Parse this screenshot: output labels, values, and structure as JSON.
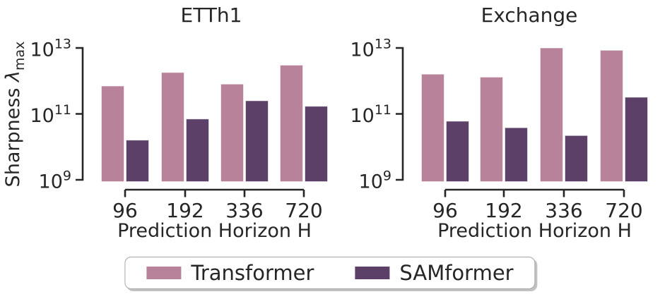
{
  "figure": {
    "background": "#ffffff"
  },
  "colors": {
    "transformer": "#b8839a",
    "samformer": "#5c4067",
    "bar_edge": "rgba(255,255,255,0.55)",
    "text": "#262626",
    "axis": "#262626",
    "legend_border": "#a6a6a6"
  },
  "legend": {
    "items": [
      {
        "label": "Transformer",
        "color_key": "transformer"
      },
      {
        "label": "SAMformer",
        "color_key": "samformer"
      }
    ]
  },
  "chart_data": [
    {
      "type": "bar",
      "title": "ETTh1",
      "xlabel": "Prediction Horizon H",
      "ylabel": {
        "text": "Sharpness λmax",
        "prefix": "Sharpness ",
        "symbol": "λ",
        "subscript": "max"
      },
      "yscale": "log",
      "ylim": [
        1000000000.0,
        30000000000000.0
      ],
      "ytick_exponents": [
        9,
        11,
        13
      ],
      "grid": false,
      "categories": [
        "96",
        "192",
        "336",
        "720"
      ],
      "series": [
        {
          "name": "Transformer",
          "values": [
            700000000000.0,
            1800000000000.0,
            800000000000.0,
            3000000000000.0
          ]
        },
        {
          "name": "SAMformer",
          "values": [
            16000000000.0,
            70000000000.0,
            250000000000.0,
            170000000000.0
          ]
        }
      ]
    },
    {
      "type": "bar",
      "title": "Exchange",
      "xlabel": "Prediction Horizon H",
      "yscale": "log",
      "ylim": [
        1000000000.0,
        30000000000000.0
      ],
      "ytick_exponents": [
        9,
        11,
        13
      ],
      "grid": false,
      "categories": [
        "96",
        "192",
        "336",
        "720"
      ],
      "series": [
        {
          "name": "Transformer",
          "values": [
            1600000000000.0,
            1300000000000.0,
            10000000000000.0,
            8500000000000.0
          ]
        },
        {
          "name": "SAMformer",
          "values": [
            60000000000.0,
            38000000000.0,
            22000000000.0,
            320000000000.0
          ]
        }
      ]
    }
  ]
}
